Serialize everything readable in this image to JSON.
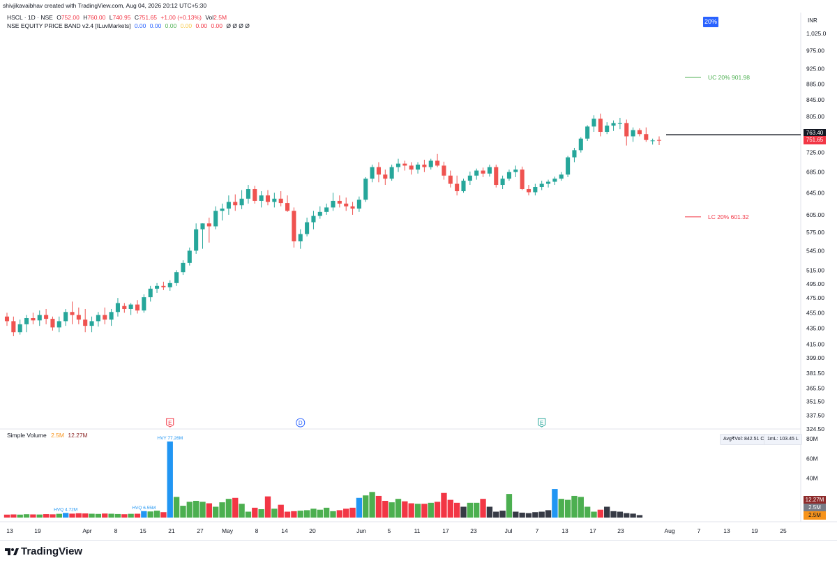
{
  "creator_line": "shivjikavaibhav created with TradingView.com, Aug 04, 2026 20:12 UTC+5:30",
  "header": {
    "symbol": "HSCL · 1D · NSE",
    "open_label": "O",
    "open": "752.00",
    "high_label": "H",
    "high": "760.00",
    "low_label": "L",
    "low": "740.95",
    "close_label": "C",
    "close": "751.65",
    "change": "+1.00 (+0.13%)",
    "vol_label": "Vol",
    "vol": "2.5M",
    "indicator_name": "NSE EQUITY PRICE BAND v2.4 [ILuvMarkets]",
    "indicator_values": [
      "0.00",
      "0.00",
      "0.00",
      "0.00",
      "0.00",
      "0.00"
    ],
    "indicator_tail": "Ø Ø Ø Ø",
    "currency": "INR"
  },
  "price_band_badge": "20%",
  "bands": {
    "uc_label": "UC",
    "uc_pct": "20%",
    "uc_value": "901.98",
    "lc_label": "LC",
    "lc_pct": "20%",
    "lc_value": "601.32"
  },
  "price_tags": {
    "last": "751.65",
    "level": "763.40"
  },
  "volume_pane": {
    "title": "Simple Volume",
    "vol_value": "2.5M",
    "avg_value": "12.27M",
    "avg_vol_box": "Avg₹Vol: 842.51 Cr",
    "oneml_box": "1mL: 103.45 L",
    "tags": [
      "12.27M",
      "2.5M",
      "2.5M"
    ],
    "annotations": [
      "HVQ 4.72M",
      "HVQ 6.55M",
      "HVY 77.26M"
    ],
    "axis_labels": [
      "80M",
      "60M",
      "40M"
    ]
  },
  "events": [
    "E",
    "D",
    "E"
  ],
  "colors": {
    "up": "#26a69a",
    "down": "#ef5350",
    "vol_up": "#4caf50",
    "vol_down": "#f23645",
    "vol_high": "#2196f3",
    "vol_low": "#363a45",
    "accent": "#2962ff",
    "uc": "#4caf50",
    "lc": "#f23645"
  },
  "chart_data": [
    {
      "type": "candlestick",
      "title": "HSCL · 1D · NSE",
      "y_axis_labels": [
        "1,025.0",
        "975.00",
        "925.00",
        "885.00",
        "845.00",
        "805.00",
        "765.00",
        "725.00",
        "685.00",
        "645.00",
        "605.00",
        "575.00",
        "545.00",
        "515.00",
        "495.00",
        "475.00",
        "455.00",
        "435.00",
        "415.00",
        "399.00",
        "381.50",
        "365.50",
        "351.50",
        "337.50",
        "324.50"
      ],
      "x_axis_labels": [
        "13",
        "19",
        "Apr",
        "8",
        "15",
        "21",
        "27",
        "May",
        "8",
        "14",
        "20",
        "Jun",
        "5",
        "11",
        "17",
        "23",
        "Jul",
        "7",
        "13",
        "17",
        "23",
        "Aug",
        "7",
        "13",
        "19",
        "25"
      ],
      "y_scale": "log",
      "ohlc": [
        [
          450,
          455,
          438,
          444
        ],
        [
          444,
          450,
          425,
          430
        ],
        [
          430,
          446,
          427,
          440
        ],
        [
          440,
          452,
          430,
          448
        ],
        [
          448,
          455,
          440,
          445
        ],
        [
          445,
          458,
          438,
          452
        ],
        [
          452,
          460,
          440,
          447
        ],
        [
          447,
          450,
          432,
          436
        ],
        [
          436,
          450,
          430,
          444
        ],
        [
          444,
          460,
          438,
          456
        ],
        [
          456,
          470,
          440,
          452
        ],
        [
          452,
          462,
          440,
          446
        ],
        [
          446,
          460,
          430,
          438
        ],
        [
          438,
          450,
          430,
          444
        ],
        [
          444,
          456,
          437,
          452
        ],
        [
          452,
          462,
          440,
          446
        ],
        [
          446,
          460,
          438,
          456
        ],
        [
          456,
          475,
          450,
          468
        ],
        [
          464,
          468,
          455,
          460
        ],
        [
          460,
          468,
          452,
          466
        ],
        [
          466,
          472,
          454,
          458
        ],
        [
          458,
          480,
          455,
          476
        ],
        [
          476,
          492,
          470,
          488
        ],
        [
          488,
          496,
          482,
          492
        ],
        [
          492,
          498,
          486,
          490
        ],
        [
          490,
          500,
          485,
          496
        ],
        [
          496,
          515,
          492,
          512
        ],
        [
          512,
          530,
          508,
          526
        ],
        [
          526,
          550,
          522,
          545
        ],
        [
          545,
          590,
          540,
          580
        ],
        [
          580,
          590,
          548,
          590
        ],
        [
          590,
          600,
          558,
          585
        ],
        [
          585,
          620,
          580,
          612
        ],
        [
          612,
          625,
          595,
          616
        ],
        [
          616,
          640,
          605,
          628
        ],
        [
          628,
          642,
          612,
          622
        ],
        [
          622,
          650,
          615,
          634
        ],
        [
          634,
          660,
          625,
          652
        ],
        [
          652,
          658,
          625,
          630
        ],
        [
          630,
          648,
          618,
          640
        ],
        [
          640,
          650,
          622,
          628
        ],
        [
          628,
          645,
          618,
          634
        ],
        [
          634,
          648,
          620,
          626
        ],
        [
          626,
          640,
          610,
          612
        ],
        [
          612,
          618,
          550,
          560
        ],
        [
          560,
          580,
          548,
          572
        ],
        [
          572,
          600,
          568,
          592
        ],
        [
          592,
          612,
          580,
          603
        ],
        [
          603,
          620,
          598,
          610
        ],
        [
          610,
          625,
          605,
          618
        ],
        [
          618,
          645,
          612,
          630
        ],
        [
          630,
          640,
          618,
          625
        ],
        [
          625,
          636,
          612,
          620
        ],
        [
          620,
          628,
          605,
          616
        ],
        [
          616,
          638,
          610,
          632
        ],
        [
          632,
          675,
          628,
          672
        ],
        [
          672,
          700,
          665,
          695
        ],
        [
          695,
          705,
          665,
          680
        ],
        [
          680,
          690,
          660,
          672
        ],
        [
          672,
          700,
          668,
          695
        ],
        [
          695,
          712,
          685,
          702
        ],
        [
          702,
          708,
          688,
          698
        ],
        [
          698,
          705,
          680,
          690
        ],
        [
          690,
          705,
          682,
          700
        ],
        [
          700,
          710,
          685,
          695
        ],
        [
          695,
          712,
          690,
          708
        ],
        [
          708,
          722,
          695,
          698
        ],
        [
          698,
          706,
          670,
          678
        ],
        [
          678,
          688,
          655,
          662
        ],
        [
          662,
          678,
          640,
          648
        ],
        [
          648,
          672,
          645,
          668
        ],
        [
          668,
          686,
          660,
          678
        ],
        [
          678,
          692,
          670,
          688
        ],
        [
          688,
          694,
          675,
          682
        ],
        [
          682,
          700,
          676,
          695
        ],
        [
          695,
          700,
          655,
          660
        ],
        [
          660,
          678,
          652,
          672
        ],
        [
          672,
          690,
          668,
          685
        ],
        [
          685,
          698,
          675,
          690
        ],
        [
          690,
          696,
          650,
          652
        ],
        [
          652,
          660,
          640,
          646
        ],
        [
          646,
          662,
          640,
          656
        ],
        [
          656,
          668,
          650,
          662
        ],
        [
          662,
          670,
          655,
          666
        ],
        [
          666,
          676,
          660,
          672
        ],
        [
          672,
          685,
          668,
          680
        ],
        [
          680,
          718,
          675,
          715
        ],
        [
          715,
          735,
          705,
          730
        ],
        [
          730,
          758,
          725,
          755
        ],
        [
          755,
          785,
          750,
          782
        ],
        [
          782,
          808,
          770,
          800
        ],
        [
          800,
          812,
          760,
          770
        ],
        [
          770,
          792,
          765,
          784
        ],
        [
          784,
          796,
          772,
          790
        ],
        [
          788,
          802,
          776,
          790
        ],
        [
          790,
          798,
          740,
          760
        ],
        [
          760,
          780,
          748,
          774
        ],
        [
          774,
          778,
          760,
          765
        ],
        [
          765,
          780,
          748,
          752
        ],
        [
          750,
          755,
          742,
          751
        ],
        [
          752,
          760,
          741,
          751
        ]
      ],
      "bands": {
        "UC": 901.98,
        "LC": 601.32
      }
    },
    {
      "type": "bar",
      "title": "Simple Volume",
      "y_axis_labels": [
        "80M",
        "60M",
        "40M"
      ],
      "unit": "M",
      "values": [
        3.0,
        3.2,
        3.0,
        3.4,
        3.2,
        3.1,
        3.5,
        3.3,
        3.8,
        4.72,
        4.0,
        4.4,
        4.2,
        3.9,
        3.7,
        4.1,
        3.9,
        3.6,
        3.4,
        3.8,
        3.9,
        6.55,
        6.2,
        7.0,
        5.5,
        77.26,
        21.0,
        12.0,
        16.0,
        17.0,
        16.0,
        14.5,
        11.0,
        15.5,
        19.0,
        20.0,
        14.0,
        6.0,
        10.0,
        8.5,
        21.5,
        9.0,
        13.0,
        6.0,
        6.5,
        7.0,
        7.5,
        9.0,
        8.0,
        10.0,
        6.5,
        7.5,
        9.0,
        10.0,
        20.0,
        22.5,
        26.0,
        22.0,
        17.0,
        15.5,
        19.0,
        16.5,
        14.5,
        14.0,
        14.0,
        15.0,
        16.0,
        25.0,
        18.0,
        15.0,
        11.0,
        15.0,
        15.0,
        19.0,
        11.0,
        6.0,
        7.0,
        24.0,
        6.0,
        5.0,
        4.5,
        5.5,
        6.0,
        7.5,
        29.0,
        19.0,
        18.0,
        22.0,
        21.0,
        11.0,
        6.0,
        8.0,
        11.0,
        6.5,
        6.0,
        4.5,
        4.0,
        2.5
      ]
    }
  ]
}
